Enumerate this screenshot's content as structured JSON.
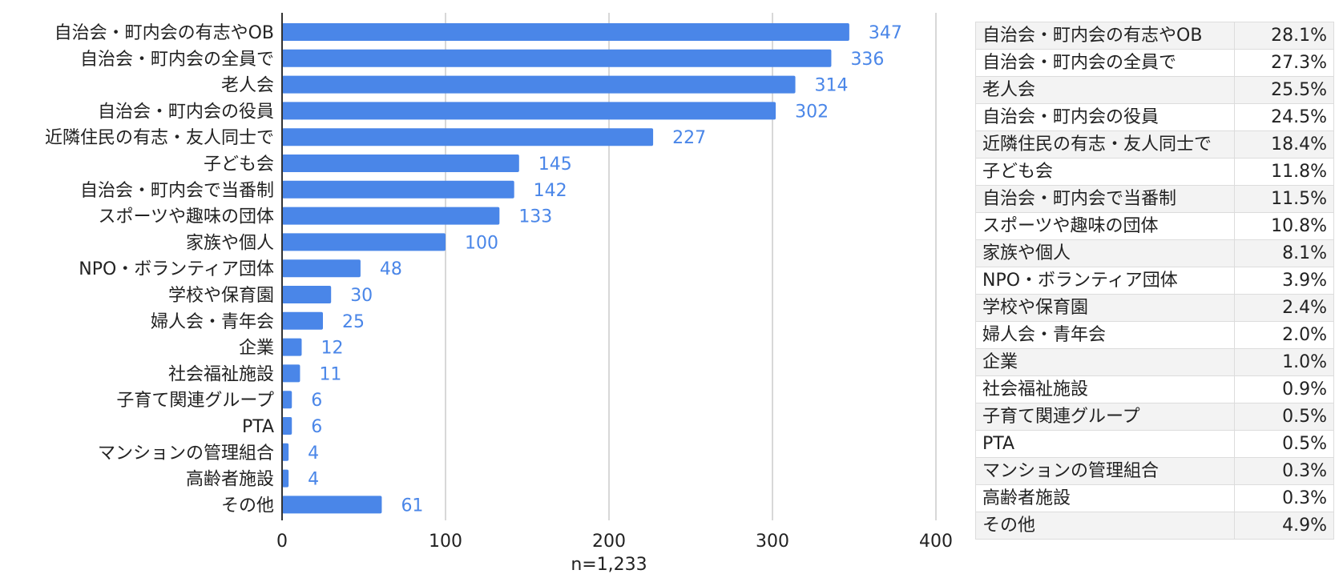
{
  "chart_data": {
    "type": "bar",
    "orientation": "horizontal",
    "categories": [
      "自治会・町内会の有志やOB",
      "自治会・町内会の全員で",
      "老人会",
      "自治会・町内会の役員",
      "近隣住民の有志・友人同士で",
      "子ども会",
      "自治会・町内会で当番制",
      "スポーツや趣味の団体",
      "家族や個人",
      "NPO・ボランティア団体",
      "学校や保育園",
      "婦人会・青年会",
      "企業",
      "社会福祉施設",
      "子育て関連グループ",
      "PTA",
      "マンションの管理組合",
      "高齢者施設",
      "その他"
    ],
    "values": [
      347,
      336,
      314,
      302,
      227,
      145,
      142,
      133,
      100,
      48,
      30,
      25,
      12,
      11,
      6,
      6,
      4,
      4,
      61
    ],
    "xlabel": "n=1,233",
    "xlim": [
      0,
      400
    ],
    "xticks": [
      "0",
      "100",
      "200",
      "300",
      "400"
    ],
    "grid": true,
    "legend": "none",
    "bar_color": "#4a86e8",
    "label_color": "#4a86e8",
    "axis_color": "#333333",
    "grid_color": "#cccccc"
  },
  "table": {
    "rows": [
      {
        "name": "自治会・町内会の有志やOB",
        "pct": "28.1%"
      },
      {
        "name": "自治会・町内会の全員で",
        "pct": "27.3%"
      },
      {
        "name": "老人会",
        "pct": "25.5%"
      },
      {
        "name": "自治会・町内会の役員",
        "pct": "24.5%"
      },
      {
        "name": "近隣住民の有志・友人同士で",
        "pct": "18.4%"
      },
      {
        "name": "子ども会",
        "pct": "11.8%"
      },
      {
        "name": "自治会・町内会で当番制",
        "pct": "11.5%"
      },
      {
        "name": "スポーツや趣味の団体",
        "pct": "10.8%"
      },
      {
        "name": "家族や個人",
        "pct": "8.1%"
      },
      {
        "name": "NPO・ボランティア団体",
        "pct": "3.9%"
      },
      {
        "name": "学校や保育園",
        "pct": "2.4%"
      },
      {
        "name": "婦人会・青年会",
        "pct": "2.0%"
      },
      {
        "name": "企業",
        "pct": "1.0%"
      },
      {
        "name": "社会福祉施設",
        "pct": "0.9%"
      },
      {
        "name": "子育て関連グループ",
        "pct": "0.5%"
      },
      {
        "name": "PTA",
        "pct": "0.5%"
      },
      {
        "name": "マンションの管理組合",
        "pct": "0.3%"
      },
      {
        "name": "高齢者施設",
        "pct": "0.3%"
      },
      {
        "name": "その他",
        "pct": "4.9%"
      }
    ]
  }
}
